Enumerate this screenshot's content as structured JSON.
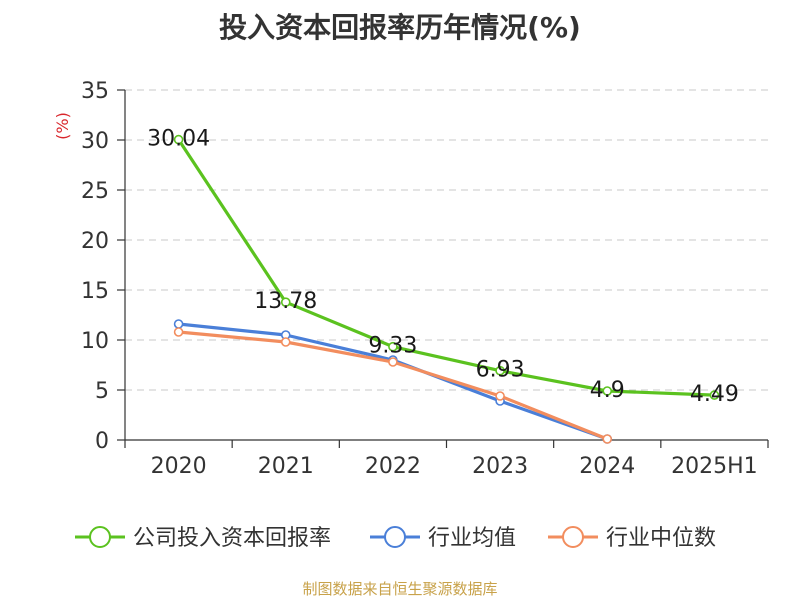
{
  "chart_data": {
    "type": "line",
    "title": "投入资本回报率历年情况(%)",
    "ylabel": "(%)",
    "xlabel": "",
    "categories": [
      "2020",
      "2021",
      "2022",
      "2023",
      "2024",
      "2025H1"
    ],
    "ylim": [
      0,
      35
    ],
    "yticks": [
      0,
      5,
      10,
      15,
      20,
      25,
      30,
      35
    ],
    "grid": true,
    "legend_position": "bottom",
    "series": [
      {
        "name": "公司投入资本回报率",
        "color": "#5bc21f",
        "values": [
          30.04,
          13.78,
          9.33,
          6.93,
          4.9,
          4.49
        ],
        "labels": [
          "30.04",
          "13.78",
          "9.33",
          "6.93",
          "4.9",
          "4.49"
        ]
      },
      {
        "name": "行业均值",
        "color": "#4a7fd8",
        "values": [
          11.6,
          10.5,
          8.0,
          3.9,
          0.1,
          null
        ]
      },
      {
        "name": "行业中位数",
        "color": "#f28d5e",
        "values": [
          10.8,
          9.8,
          7.8,
          4.4,
          0.1,
          null
        ]
      }
    ]
  },
  "footer": {
    "source": "制图数据来自恒生聚源数据库"
  }
}
